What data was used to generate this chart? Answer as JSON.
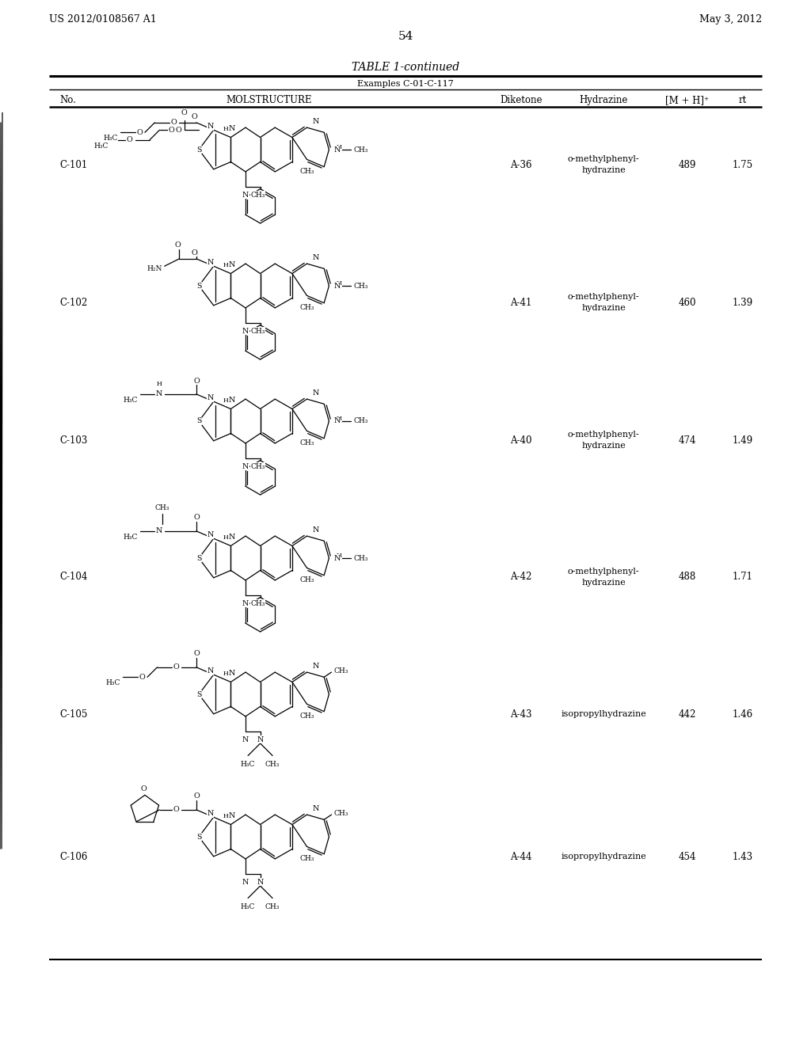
{
  "page_header_left": "US 2012/0108567 A1",
  "page_header_right": "May 3, 2012",
  "page_number": "54",
  "table_title": "TABLE 1-continued",
  "table_subtitle": "Examples C-01-C-117",
  "rows": [
    {
      "no": "C-101",
      "diketone": "A-36",
      "hydrazine": "o-methylphenyl-\nhydrazine",
      "mh": "489",
      "rt": "1.75"
    },
    {
      "no": "C-102",
      "diketone": "A-41",
      "hydrazine": "o-methylphenyl-\nhydrazine",
      "mh": "460",
      "rt": "1.39"
    },
    {
      "no": "C-103",
      "diketone": "A-40",
      "hydrazine": "o-methylphenyl-\nhydrazine",
      "mh": "474",
      "rt": "1.49"
    },
    {
      "no": "C-104",
      "diketone": "A-42",
      "hydrazine": "o-methylphenyl-\nhydrazine",
      "mh": "488",
      "rt": "1.71"
    },
    {
      "no": "C-105",
      "diketone": "A-43",
      "hydrazine": "isopropylhydrazine",
      "mh": "442",
      "rt": "1.46"
    },
    {
      "no": "C-106",
      "diketone": "A-44",
      "hydrazine": "isopropylhydrazine",
      "mh": "454",
      "rt": "1.43"
    }
  ],
  "bg_color": "#ffffff",
  "text_color": "#000000"
}
